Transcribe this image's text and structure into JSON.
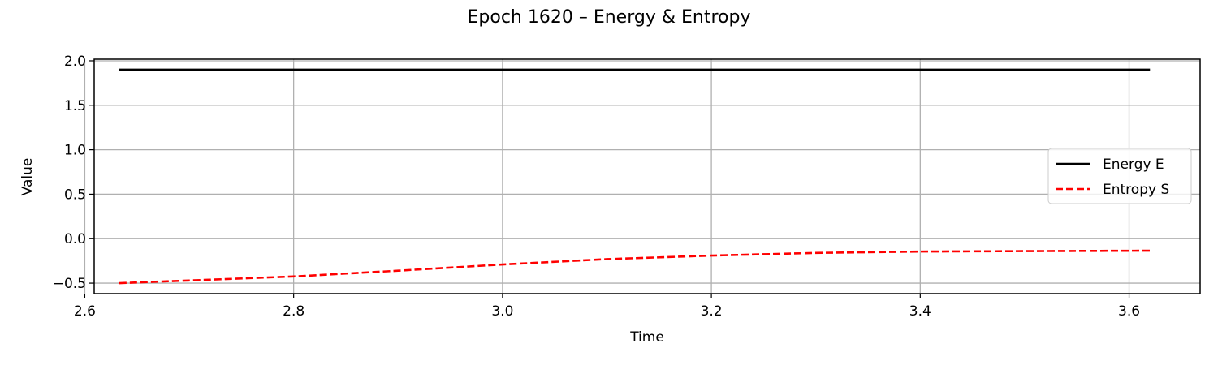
{
  "chart_data": {
    "type": "line",
    "title": "Epoch 1620 – Energy & Entropy",
    "xlabel": "Time",
    "ylabel": "Value",
    "xlim": [
      2.609,
      3.668
    ],
    "ylim": [
      -0.618,
      2.018
    ],
    "xticks": [
      {
        "value": 2.6,
        "label": "2.6"
      },
      {
        "value": 2.8,
        "label": "2.8"
      },
      {
        "value": 3.0,
        "label": "3.0"
      },
      {
        "value": 3.2,
        "label": "3.2"
      },
      {
        "value": 3.4,
        "label": "3.4"
      },
      {
        "value": 3.6,
        "label": "3.6"
      }
    ],
    "yticks": [
      {
        "value": -0.5,
        "label": "−0.5"
      },
      {
        "value": 0.0,
        "label": "0.0"
      },
      {
        "value": 0.5,
        "label": "0.5"
      },
      {
        "value": 1.0,
        "label": "1.0"
      },
      {
        "value": 1.5,
        "label": "1.5"
      },
      {
        "value": 2.0,
        "label": "2.0"
      }
    ],
    "grid": true,
    "legend_position": "center-right",
    "series": [
      {
        "name": "Energy E",
        "color": "#000000",
        "style": "solid",
        "x": [
          2.633,
          2.8,
          3.0,
          3.2,
          3.4,
          3.62
        ],
        "y": [
          1.9,
          1.9,
          1.9,
          1.9,
          1.9,
          1.9
        ]
      },
      {
        "name": "Entropy S",
        "color": "#ff0000",
        "style": "dashed",
        "x": [
          2.633,
          2.7,
          2.8,
          2.9,
          3.0,
          3.1,
          3.2,
          3.3,
          3.4,
          3.5,
          3.62
        ],
        "y": [
          -0.5,
          -0.47,
          -0.425,
          -0.36,
          -0.29,
          -0.23,
          -0.19,
          -0.16,
          -0.145,
          -0.14,
          -0.135
        ]
      }
    ]
  }
}
